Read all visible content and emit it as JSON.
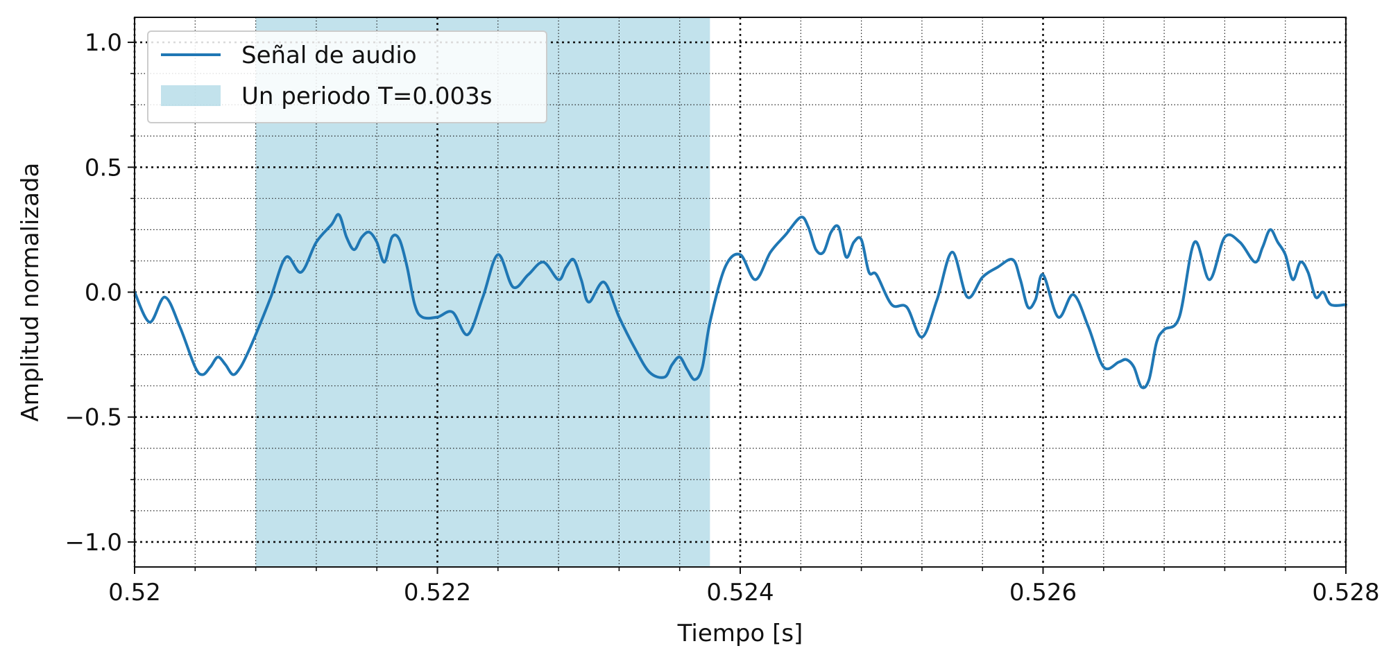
{
  "chart_data": {
    "type": "line",
    "title": "",
    "xlabel": "Tiempo [s]",
    "ylabel": "Amplitud normalizada",
    "xlim": [
      0.52,
      0.528
    ],
    "ylim": [
      -1.1,
      1.1
    ],
    "x_ticks": [
      0.52,
      0.522,
      0.524,
      0.526,
      0.528
    ],
    "x_tick_labels": [
      "0.52",
      "0.522",
      "0.524",
      "0.526",
      "0.528"
    ],
    "y_ticks": [
      -1.0,
      -0.5,
      0.0,
      0.5,
      1.0
    ],
    "y_tick_labels": [
      "−1.0",
      "−0.5",
      "0.0",
      "0.5",
      "1.0"
    ],
    "x_minor_step": 0.0004,
    "y_minor_step": 0.125,
    "grid": true,
    "grid_style": "dotted",
    "legend_position": "top-left",
    "series": [
      {
        "name": "Señal de audio",
        "color": "#1f77b4",
        "x": [
          0.52,
          0.5201,
          0.5202,
          0.5203,
          0.5204,
          0.52045,
          0.5205,
          0.52055,
          0.5206,
          0.52065,
          0.5207,
          0.52075,
          0.5208,
          0.5209,
          0.521,
          0.5211,
          0.5212,
          0.5213,
          0.52135,
          0.5214,
          0.52145,
          0.5215,
          0.52155,
          0.5216,
          0.52165,
          0.5217,
          0.52175,
          0.5218,
          0.52185,
          0.5219,
          0.522,
          0.5221,
          0.5222,
          0.5223,
          0.5224,
          0.5225,
          0.5226,
          0.5227,
          0.5228,
          0.52285,
          0.5229,
          0.52295,
          0.523,
          0.5231,
          0.5232,
          0.5233,
          0.5234,
          0.5235,
          0.52355,
          0.5236,
          0.52365,
          0.5237,
          0.52375,
          0.5238,
          0.5239,
          0.524,
          0.5241,
          0.5242,
          0.5243,
          0.5244,
          0.52445,
          0.5245,
          0.52455,
          0.5246,
          0.52465,
          0.5247,
          0.52475,
          0.5248,
          0.52485,
          0.5249,
          0.525,
          0.5251,
          0.5252,
          0.5253,
          0.5254,
          0.5255,
          0.5256,
          0.5257,
          0.5258,
          0.52585,
          0.5259,
          0.52595,
          0.526,
          0.5261,
          0.5262,
          0.5263,
          0.5264,
          0.5265,
          0.52655,
          0.5266,
          0.52665,
          0.5267,
          0.52675,
          0.5268,
          0.5269,
          0.527,
          0.5271,
          0.5272,
          0.5273,
          0.5274,
          0.52745,
          0.5275,
          0.52755,
          0.5276,
          0.52765,
          0.5277,
          0.52775,
          0.5278,
          0.52785,
          0.5279,
          0.528
        ],
        "y": [
          0.0,
          -0.12,
          -0.02,
          -0.14,
          -0.3,
          -0.33,
          -0.3,
          -0.26,
          -0.29,
          -0.33,
          -0.3,
          -0.24,
          -0.17,
          -0.02,
          0.14,
          0.08,
          0.2,
          0.27,
          0.31,
          0.22,
          0.17,
          0.22,
          0.24,
          0.2,
          0.12,
          0.22,
          0.21,
          0.1,
          -0.05,
          -0.1,
          -0.1,
          -0.08,
          -0.17,
          -0.02,
          0.15,
          0.02,
          0.07,
          0.12,
          0.05,
          0.1,
          0.13,
          0.05,
          -0.04,
          0.04,
          -0.1,
          -0.22,
          -0.32,
          -0.34,
          -0.29,
          -0.26,
          -0.31,
          -0.35,
          -0.3,
          -0.12,
          0.1,
          0.15,
          0.05,
          0.16,
          0.23,
          0.3,
          0.26,
          0.17,
          0.16,
          0.24,
          0.26,
          0.14,
          0.2,
          0.21,
          0.08,
          0.07,
          -0.05,
          -0.06,
          -0.18,
          -0.03,
          0.16,
          -0.02,
          0.06,
          0.1,
          0.13,
          0.05,
          -0.06,
          -0.03,
          0.07,
          -0.1,
          -0.01,
          -0.14,
          -0.3,
          -0.28,
          -0.27,
          -0.3,
          -0.38,
          -0.35,
          -0.2,
          -0.15,
          -0.1,
          0.2,
          0.05,
          0.22,
          0.2,
          0.12,
          0.18,
          0.25,
          0.2,
          0.15,
          0.05,
          0.12,
          0.08,
          -0.02,
          0.0,
          -0.05,
          -0.05
        ]
      }
    ],
    "shaded_regions": [
      {
        "name": "Un periodo T=0.003s",
        "x_start": 0.5208,
        "x_end": 0.5238,
        "color": "#add8e6"
      }
    ]
  }
}
